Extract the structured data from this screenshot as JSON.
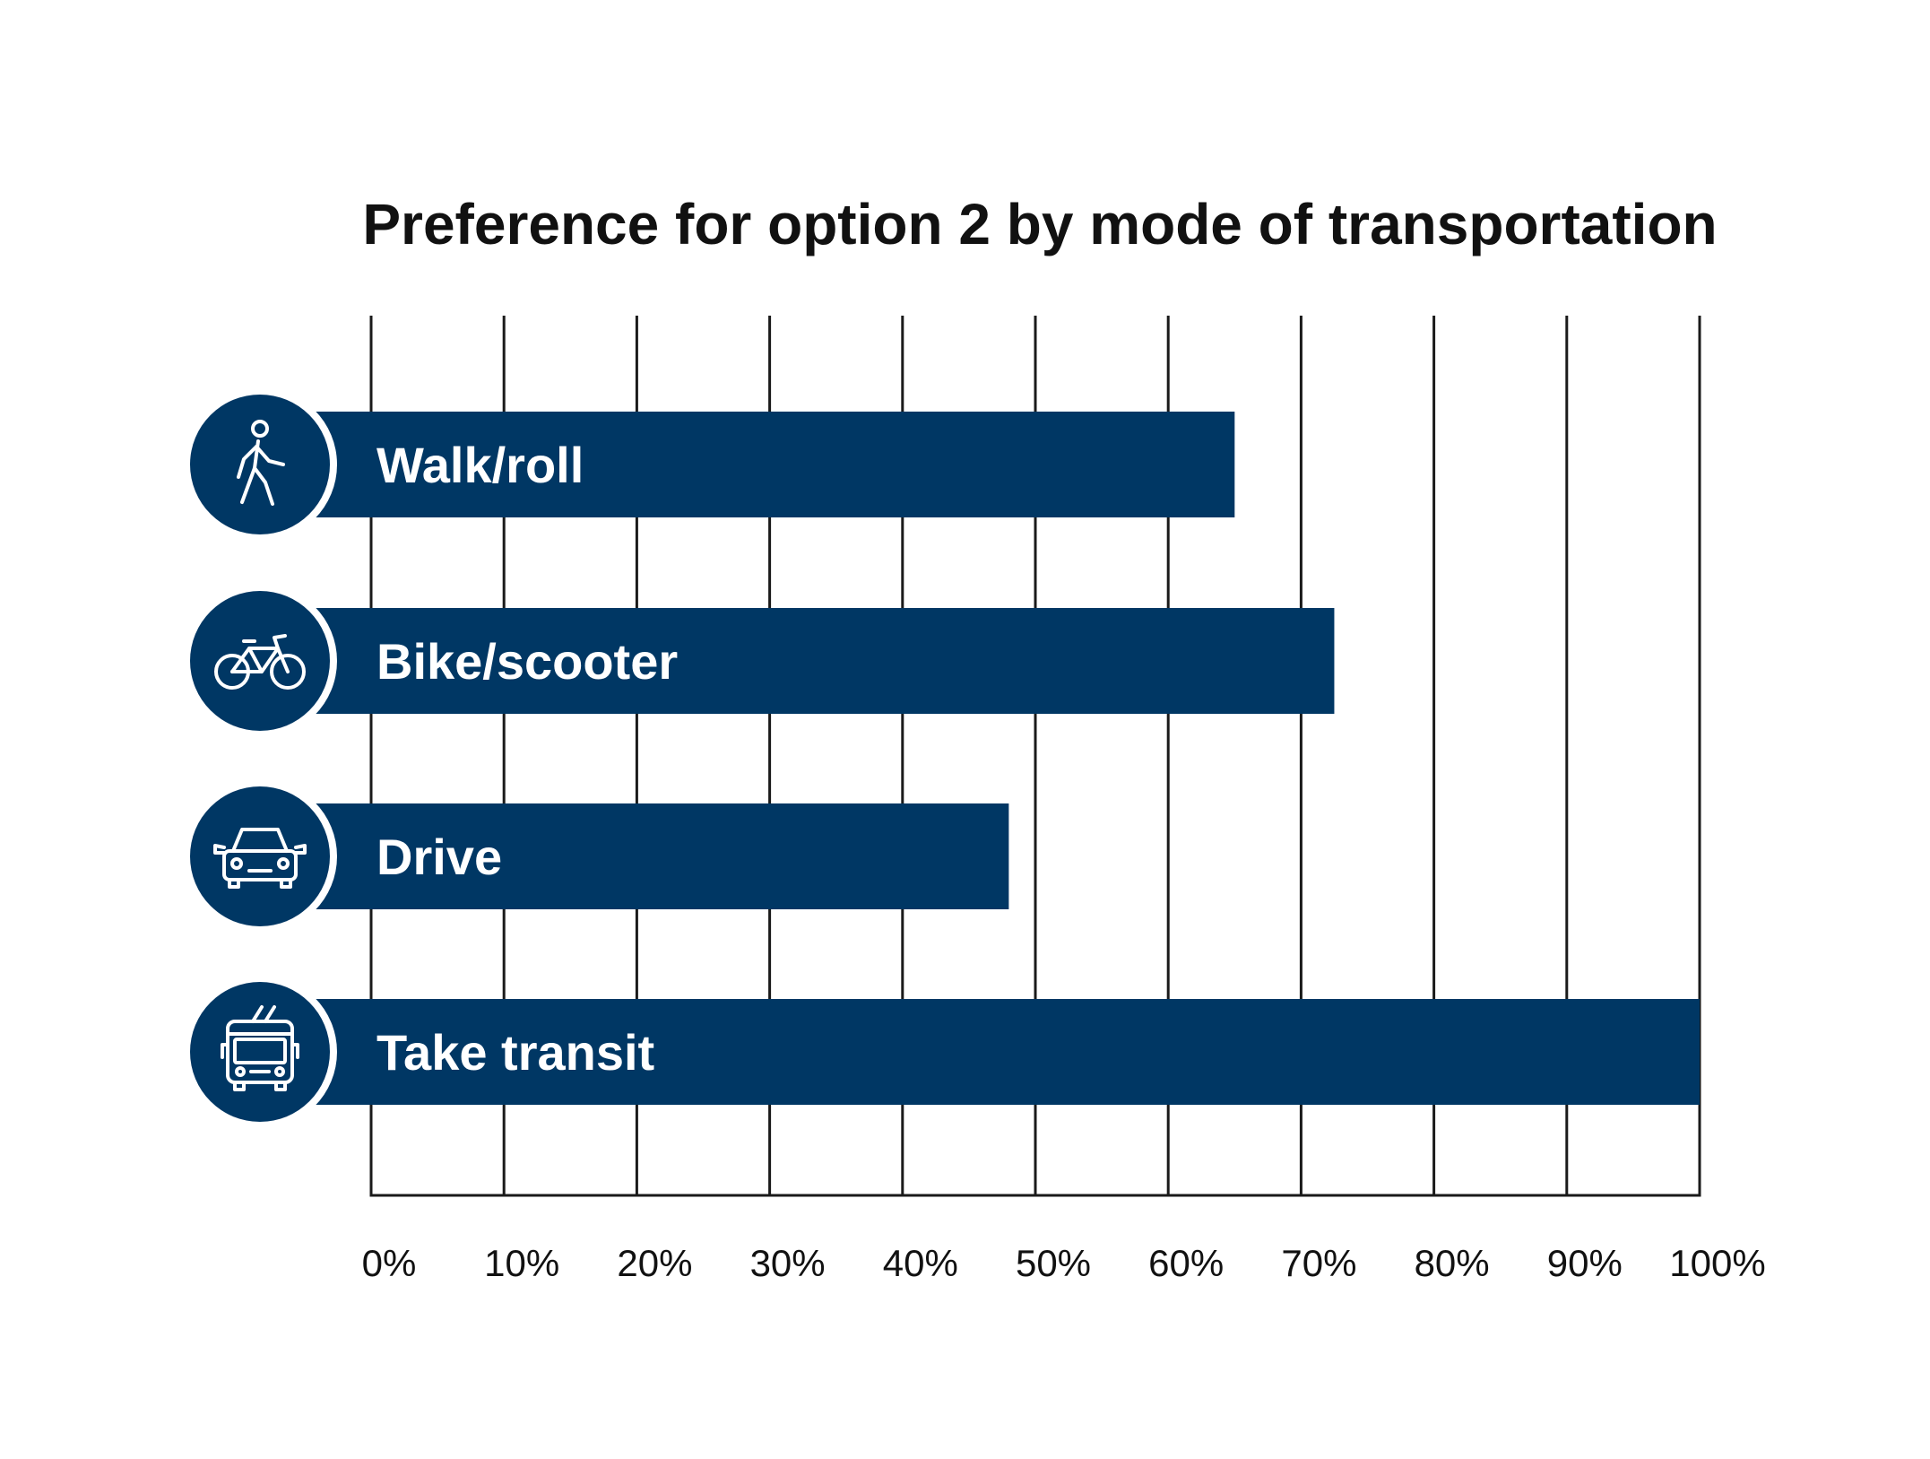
{
  "chart_data": {
    "type": "bar",
    "orientation": "horizontal",
    "title": "Preference for option 2 by mode of transportation",
    "categories": [
      "Walk/roll",
      "Bike/scooter",
      "Drive",
      "Take transit"
    ],
    "icons": [
      "walking-person-icon",
      "bicycle-icon",
      "car-icon",
      "trolleybus-icon"
    ],
    "values": [
      65,
      72.5,
      48,
      100
    ],
    "xlim": [
      0,
      100
    ],
    "x_ticks": [
      "0%",
      "10%",
      "20%",
      "30%",
      "40%",
      "50%",
      "60%",
      "70%",
      "80%",
      "90%",
      "100%"
    ],
    "grid": true,
    "legend": "none",
    "colors": {
      "bar": "#003764",
      "bar_text": "#ffffff",
      "grid": "#1a1a1a",
      "text": "#111111"
    }
  }
}
